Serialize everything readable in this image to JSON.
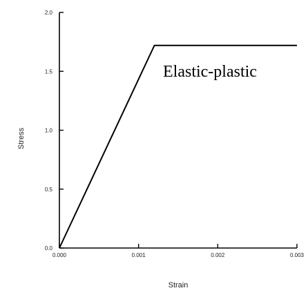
{
  "chart_data": {
    "type": "line",
    "xlabel": "Strain",
    "ylabel": "Stress",
    "xlim": [
      0,
      0.003
    ],
    "ylim": [
      0,
      2.0
    ],
    "x_ticks": [
      {
        "value": 0.0,
        "label": "0.000"
      },
      {
        "value": 0.001,
        "label": "0.001"
      },
      {
        "value": 0.002,
        "label": "0.002"
      },
      {
        "value": 0.003,
        "label": "0.003"
      }
    ],
    "y_ticks": [
      {
        "value": 0.0,
        "label": "0.0"
      },
      {
        "value": 0.5,
        "label": "0.5"
      },
      {
        "value": 1.0,
        "label": "1.0"
      },
      {
        "value": 1.5,
        "label": "1.5"
      },
      {
        "value": 2.0,
        "label": "2.0"
      }
    ],
    "series": [
      {
        "x": [
          0.0,
          0.0012,
          0.003
        ],
        "y": [
          0.0,
          1.72,
          1.72
        ]
      }
    ],
    "annotations": [
      {
        "text": "Elastic-plastic"
      }
    ],
    "grid": false,
    "legend": "none",
    "colors": {
      "line": "#000000"
    }
  }
}
